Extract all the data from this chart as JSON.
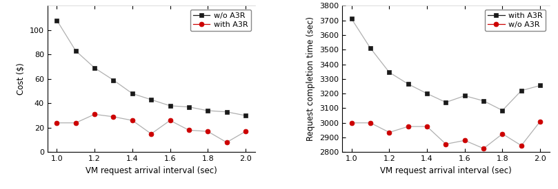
{
  "x": [
    1.0,
    1.1,
    1.2,
    1.3,
    1.4,
    1.5,
    1.6,
    1.7,
    1.8,
    1.9,
    2.0
  ],
  "left_wo_a3r": [
    108,
    83,
    69,
    59,
    48,
    43,
    38,
    37,
    34,
    33,
    30
  ],
  "left_with_a3r": [
    24,
    24,
    31,
    29,
    26,
    15,
    26,
    18,
    17,
    8,
    17
  ],
  "right_with_a3r": [
    3710,
    3510,
    3345,
    3265,
    3200,
    3140,
    3185,
    3150,
    3085,
    3220,
    3255
  ],
  "right_wo_a3r": [
    3000,
    3000,
    2935,
    2975,
    2975,
    2855,
    2880,
    2825,
    2925,
    2845,
    3010
  ],
  "left_xlabel": "VM request arrival interval (sec)",
  "left_ylabel": "Cost ($)",
  "right_xlabel": "VM request arrival interval (sec)",
  "right_ylabel": "Request completion time (sec)",
  "left_legend_wo": "w/o A3R",
  "left_legend_with": "with A3R",
  "right_legend_with": "with A3R",
  "right_legend_wo": "w/o A3R",
  "color_black": "#1a1a1a",
  "color_red": "#cc0000",
  "line_color": "#b0b0b0",
  "left_xlim": [
    0.95,
    2.05
  ],
  "left_ylim": [
    0,
    120
  ],
  "right_xlim": [
    0.95,
    2.05
  ],
  "right_ylim": [
    2800,
    3800
  ],
  "left_xticks": [
    1.0,
    1.2,
    1.4,
    1.6,
    1.8,
    2.0
  ],
  "left_yticks": [
    0,
    20,
    40,
    60,
    80,
    100
  ],
  "right_xticks": [
    1.0,
    1.2,
    1.4,
    1.6,
    1.8,
    2.0
  ],
  "right_yticks": [
    2800,
    2900,
    3000,
    3100,
    3200,
    3300,
    3400,
    3500,
    3600,
    3700,
    3800
  ]
}
